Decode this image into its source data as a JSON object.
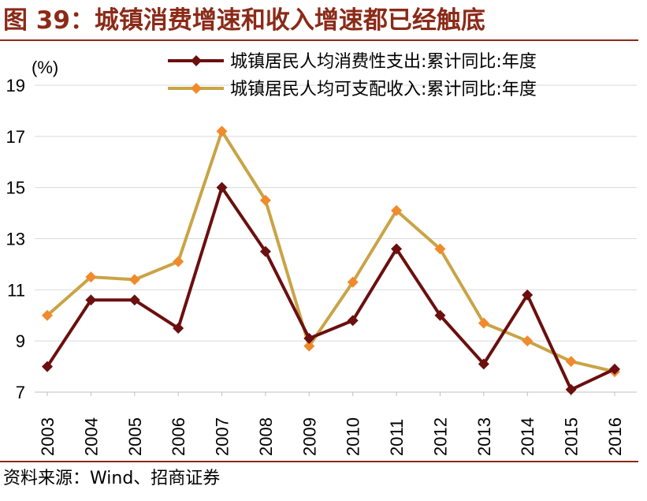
{
  "header": {
    "title": "图 39：城镇消费增速和收入增速都已经触底"
  },
  "footer": {
    "source": "资料来源：Wind、招商证券"
  },
  "chart_data": {
    "type": "line",
    "title": "图 39：城镇消费增速和收入增速都已经触底",
    "ylabel": "(%)",
    "xlabel": "",
    "ylim": [
      7,
      19
    ],
    "yticks": [
      "7",
      "9",
      "11",
      "13",
      "15",
      "17",
      "19"
    ],
    "grid": true,
    "legend_position": "top-right",
    "x": [
      "2003",
      "2004",
      "2005",
      "2006",
      "2007",
      "2008",
      "2009",
      "2010",
      "2011",
      "2012",
      "2013",
      "2014",
      "2015",
      "2016"
    ],
    "series": [
      {
        "name": "城镇居民人均消费性支出:累计同比:年度",
        "color": "#6B0F0F",
        "marker": "diamond",
        "values": [
          8.0,
          10.6,
          10.6,
          9.5,
          15.0,
          12.5,
          9.1,
          9.8,
          12.6,
          10.0,
          8.1,
          10.8,
          7.1,
          7.9
        ]
      },
      {
        "name": "城镇居民人均可支配收入:累计同比:年度",
        "color": "#C9A446",
        "marker_color": "#F08A2C",
        "marker": "diamond",
        "values": [
          10.0,
          11.5,
          11.4,
          12.1,
          17.2,
          14.5,
          8.8,
          11.3,
          14.1,
          12.6,
          9.7,
          9.0,
          8.2,
          7.8
        ]
      }
    ]
  }
}
